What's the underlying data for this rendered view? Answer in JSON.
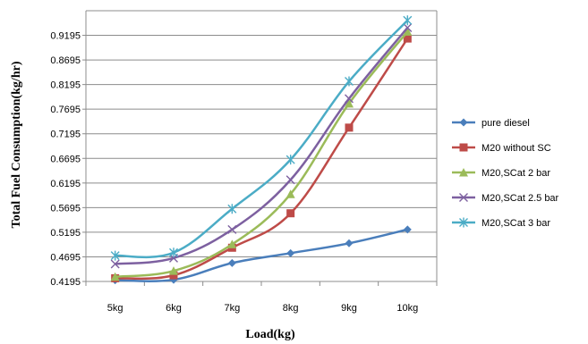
{
  "chart_data": {
    "type": "line",
    "title": "",
    "xlabel": "Load(kg)",
    "ylabel": "Total Fuel Consumption(kg/hr)",
    "categories": [
      "5kg",
      "6kg",
      "7kg",
      "8kg",
      "9kg",
      "10kg"
    ],
    "ylim": [
      0.4195,
      0.9695
    ],
    "yticks": [
      0.4195,
      0.4695,
      0.5195,
      0.5695,
      0.6195,
      0.6695,
      0.7195,
      0.7695,
      0.8195,
      0.8695,
      0.9195
    ],
    "ytick_labels": [
      "0.4195",
      "0.4695",
      "0.5195",
      "0.5695",
      "0.6195",
      "0.6695",
      "0.7195",
      "0.7695",
      "0.8195",
      "0.8695",
      "0.9195"
    ],
    "grid": "horizontal",
    "legend_position": "right",
    "series": [
      {
        "name": "pure diesel",
        "color": "#4a7ebb",
        "marker": "diamond",
        "values": [
          0.422,
          0.423,
          0.457,
          0.477,
          0.497,
          0.525
        ]
      },
      {
        "name": "M20 without SC",
        "color": "#be4b48",
        "marker": "square",
        "values": [
          0.426,
          0.432,
          0.488,
          0.558,
          0.732,
          0.913
        ]
      },
      {
        "name": "M20,SCat 2 bar",
        "color": "#9bbb59",
        "marker": "triangle",
        "values": [
          0.429,
          0.441,
          0.495,
          0.597,
          0.781,
          0.927
        ]
      },
      {
        "name": "M20,SCat 2.5 bar",
        "color": "#7d60a0",
        "marker": "x",
        "values": [
          0.455,
          0.467,
          0.525,
          0.626,
          0.791,
          0.935
        ]
      },
      {
        "name": "M20,SCat 3 bar",
        "color": "#4bacc6",
        "marker": "star",
        "values": [
          0.472,
          0.478,
          0.567,
          0.667,
          0.826,
          0.95
        ]
      }
    ]
  }
}
